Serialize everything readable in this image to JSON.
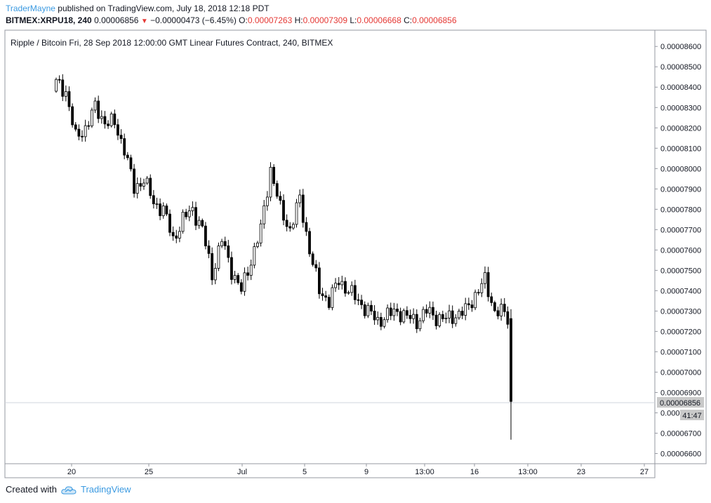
{
  "header": {
    "author": "TraderMayne",
    "published_text": "published on TradingView.com, July 18, 2018 12:18 PDT",
    "symbol": "BITMEX:XRPU18, 240",
    "last": "0.00006856",
    "change": "−0.00000473 (−6.45%)",
    "o_label": "O:",
    "o_value": "0.00007263",
    "h_label": "H:",
    "h_value": "0.00007309",
    "l_label": "L:",
    "l_value": "0.00006668",
    "c_label": "C:",
    "c_value": "0.00006856"
  },
  "footer": {
    "created_with": "Created with",
    "brand": "TradingView"
  },
  "colors": {
    "up": "#ffffff",
    "down": "#000000",
    "accent": "#3b9ae1",
    "red": "#e53935"
  },
  "chart_data": {
    "type": "candlestick",
    "title": "Ripple / Bitcoin Fri, 28 Sep 2018 12:00:00 GMT Linear Futures Contract, 240, BITMEX",
    "y_axis_side": "right",
    "ylim": [
      6.55e-05,
      8.68e-05
    ],
    "y_ticks": [
      "0.00008600",
      "0.00008500",
      "0.00008400",
      "0.00008300",
      "0.00008200",
      "0.00008100",
      "0.00008000",
      "0.00007900",
      "0.00007800",
      "0.00007700",
      "0.00007600",
      "0.00007500",
      "0.00007400",
      "0.00007300",
      "0.00007200",
      "0.00007100",
      "0.00007000",
      "0.00006900",
      "0.00006800",
      "0.00006700",
      "0.00006600"
    ],
    "x_ticks": [
      "20",
      "25",
      "Jul",
      "5",
      "9",
      "13:00",
      "16",
      "13:00",
      "23",
      "27"
    ],
    "last_price_label": "0.00006856",
    "countdown": "41:47",
    "path_points": [
      [
        0,
        8420
      ],
      [
        3,
        8380
      ],
      [
        6,
        8150
      ],
      [
        9,
        8200
      ],
      [
        12,
        8300
      ],
      [
        15,
        8230
      ],
      [
        18,
        8220
      ],
      [
        21,
        8100
      ],
      [
        24,
        7900
      ],
      [
        27,
        7950
      ],
      [
        30,
        7830
      ],
      [
        33,
        7800
      ],
      [
        36,
        7650
      ],
      [
        39,
        7750
      ],
      [
        42,
        7800
      ],
      [
        45,
        7700
      ],
      [
        48,
        7480
      ],
      [
        51,
        7650
      ],
      [
        54,
        7500
      ],
      [
        57,
        7400
      ],
      [
        60,
        7550
      ],
      [
        63,
        7700
      ],
      [
        66,
        8000
      ],
      [
        69,
        7800
      ],
      [
        72,
        7700
      ],
      [
        75,
        7850
      ],
      [
        78,
        7600
      ],
      [
        81,
        7400
      ],
      [
        84,
        7350
      ],
      [
        87,
        7450
      ],
      [
        90,
        7400
      ],
      [
        93,
        7350
      ],
      [
        96,
        7300
      ],
      [
        99,
        7250
      ],
      [
        102,
        7280
      ],
      [
        105,
        7300
      ],
      [
        108,
        7270
      ],
      [
        111,
        7250
      ],
      [
        114,
        7300
      ],
      [
        117,
        7270
      ],
      [
        120,
        7260
      ],
      [
        123,
        7280
      ],
      [
        126,
        7300
      ],
      [
        129,
        7380
      ],
      [
        132,
        7450
      ],
      [
        135,
        7300
      ],
      [
        138,
        7290
      ],
      [
        139,
        7263
      ]
    ],
    "last_candle": {
      "o": 7.263e-05,
      "h": 7.309e-05,
      "l": 6.668e-05,
      "c": 6.856e-05
    }
  }
}
